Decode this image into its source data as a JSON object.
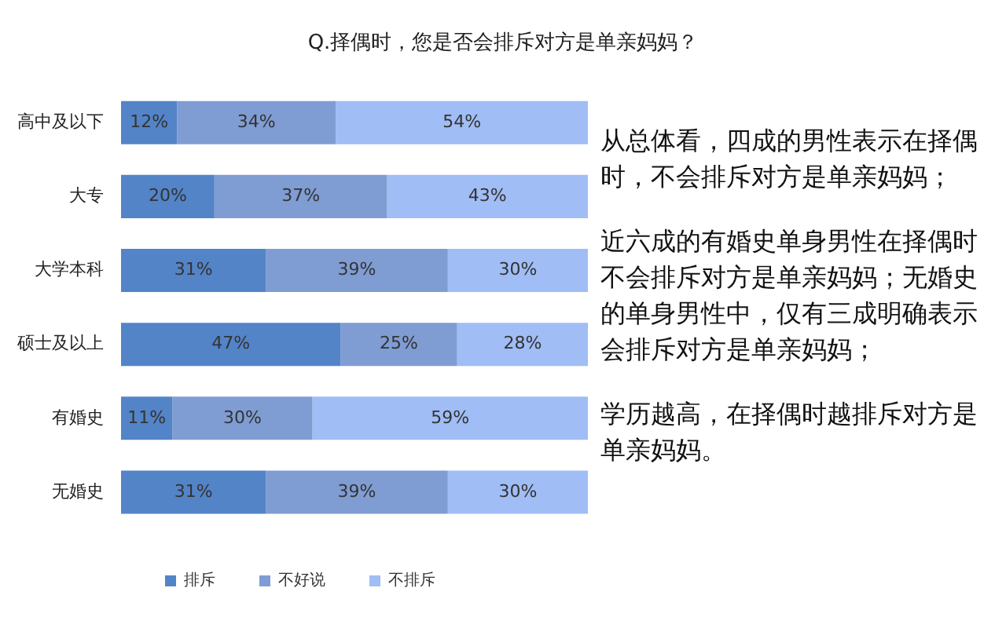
{
  "chart_data": {
    "type": "bar",
    "orientation": "horizontal",
    "stacked": true,
    "title": "Q.择偶时，您是否会排斥对方是单亲妈妈？",
    "categories": [
      "高中及以下",
      "大专",
      "大学本科",
      "硕士及以上",
      "有婚史",
      "无婚史"
    ],
    "series": [
      {
        "name": "排斥",
        "color": "#5384c8",
        "values": [
          12,
          20,
          31,
          47,
          11,
          31
        ],
        "value_labels": [
          "12%",
          "20%",
          "31%",
          "47%",
          "11%",
          "31%"
        ]
      },
      {
        "name": "不好说",
        "color": "#7f9dd3",
        "values": [
          34,
          37,
          39,
          25,
          30,
          39
        ],
        "value_labels": [
          "34%",
          "37%",
          "39%",
          "25%",
          "30%",
          "39%"
        ]
      },
      {
        "name": "不排斥",
        "color": "#a0bdf5",
        "values": [
          54,
          43,
          30,
          28,
          59,
          30
        ],
        "value_labels": [
          "54%",
          "43%",
          "30%",
          "28%",
          "59%",
          "30%"
        ]
      }
    ],
    "tick_labels": "y",
    "legend": "bottom",
    "annotations": [
      "从总体看，四成的男性表示在择偶时，不会排斥对方是单亲妈妈；",
      "近六成的有婚史单身男性在择偶时不会排斥对方是单亲妈妈；无婚史的单身男性中，仅有三成明确表示会排斥对方是单亲妈妈；",
      "学历越高，在择偶时越排斥对方是单亲妈妈。"
    ]
  }
}
